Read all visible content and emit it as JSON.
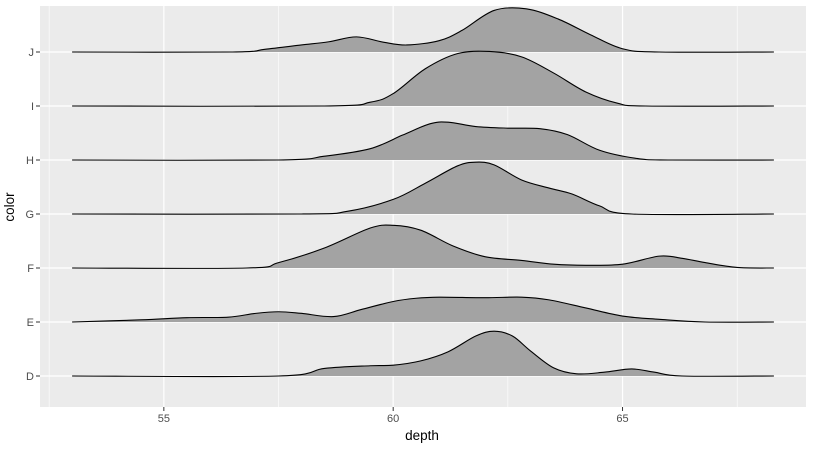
{
  "chart_data": {
    "type": "ridgeline",
    "xlabel": "depth",
    "ylabel": "color",
    "xticks": [
      55,
      60,
      65
    ],
    "xlim": [
      52.3,
      69.0
    ],
    "grid": true,
    "categories": [
      "D",
      "E",
      "F",
      "G",
      "H",
      "I",
      "J"
    ],
    "series": [
      {
        "name": "D",
        "x": [
          53.0,
          57.5,
          58.5,
          59.5,
          60.0,
          60.6,
          61.2,
          61.8,
          62.2,
          62.6,
          63.0,
          63.5,
          64.0,
          64.6,
          65.2,
          65.7,
          66.3,
          68.3
        ],
        "density": [
          0,
          0,
          0.14,
          0.19,
          0.2,
          0.28,
          0.45,
          0.74,
          0.83,
          0.74,
          0.46,
          0.15,
          0.04,
          0.07,
          0.13,
          0.07,
          0,
          0
        ]
      },
      {
        "name": "E",
        "x": [
          53.0,
          54.5,
          55.5,
          56.4,
          57.0,
          57.5,
          58.0,
          58.7,
          59.3,
          60.0,
          60.5,
          61.0,
          62.0,
          62.8,
          63.4,
          64.2,
          65.0,
          65.8,
          66.8,
          68.3
        ],
        "density": [
          0,
          0.04,
          0.08,
          0.09,
          0.16,
          0.19,
          0.16,
          0.1,
          0.23,
          0.38,
          0.44,
          0.46,
          0.45,
          0.46,
          0.41,
          0.26,
          0.11,
          0.05,
          0,
          0
        ]
      },
      {
        "name": "F",
        "x": [
          53.0,
          56.8,
          57.5,
          58.5,
          59.5,
          60.0,
          60.6,
          61.3,
          62.0,
          62.8,
          63.5,
          64.2,
          65.0,
          65.8,
          66.3,
          66.8,
          67.5,
          68.3
        ],
        "density": [
          0,
          0,
          0.1,
          0.37,
          0.74,
          0.79,
          0.7,
          0.41,
          0.21,
          0.14,
          0.07,
          0.05,
          0.07,
          0.22,
          0.18,
          0.1,
          0.01,
          0
        ]
      },
      {
        "name": "G",
        "x": [
          53.0,
          58.0,
          59.0,
          60.0,
          60.7,
          61.4,
          61.8,
          62.2,
          62.8,
          63.4,
          63.9,
          64.5,
          65.2,
          68.3
        ],
        "density": [
          0,
          0,
          0.05,
          0.27,
          0.57,
          0.89,
          0.96,
          0.91,
          0.63,
          0.48,
          0.37,
          0.15,
          0,
          0
        ]
      },
      {
        "name": "H",
        "x": [
          53.0,
          57.5,
          58.5,
          59.5,
          60.2,
          60.8,
          61.2,
          61.8,
          62.5,
          63.2,
          63.8,
          64.5,
          65.3,
          66.0,
          68.3
        ],
        "density": [
          0,
          0,
          0.07,
          0.21,
          0.46,
          0.67,
          0.7,
          0.62,
          0.59,
          0.58,
          0.47,
          0.18,
          0.03,
          0,
          0
        ]
      },
      {
        "name": "I",
        "x": [
          53.0,
          58.5,
          59.5,
          60.0,
          60.7,
          61.4,
          62.1,
          62.8,
          63.5,
          64.2,
          64.9,
          65.5,
          68.3
        ],
        "density": [
          0,
          0,
          0.07,
          0.23,
          0.69,
          0.97,
          1.01,
          0.91,
          0.61,
          0.26,
          0.05,
          0,
          0
        ]
      },
      {
        "name": "J",
        "x": [
          53.0,
          56.5,
          57.2,
          58.0,
          58.6,
          59.2,
          59.8,
          60.3,
          61.0,
          61.5,
          62.2,
          62.9,
          63.6,
          64.3,
          65.0,
          65.8,
          68.3
        ],
        "density": [
          0,
          0,
          0.05,
          0.13,
          0.19,
          0.28,
          0.18,
          0.13,
          0.21,
          0.4,
          0.77,
          0.8,
          0.61,
          0.32,
          0.06,
          0,
          0
        ]
      }
    ]
  }
}
